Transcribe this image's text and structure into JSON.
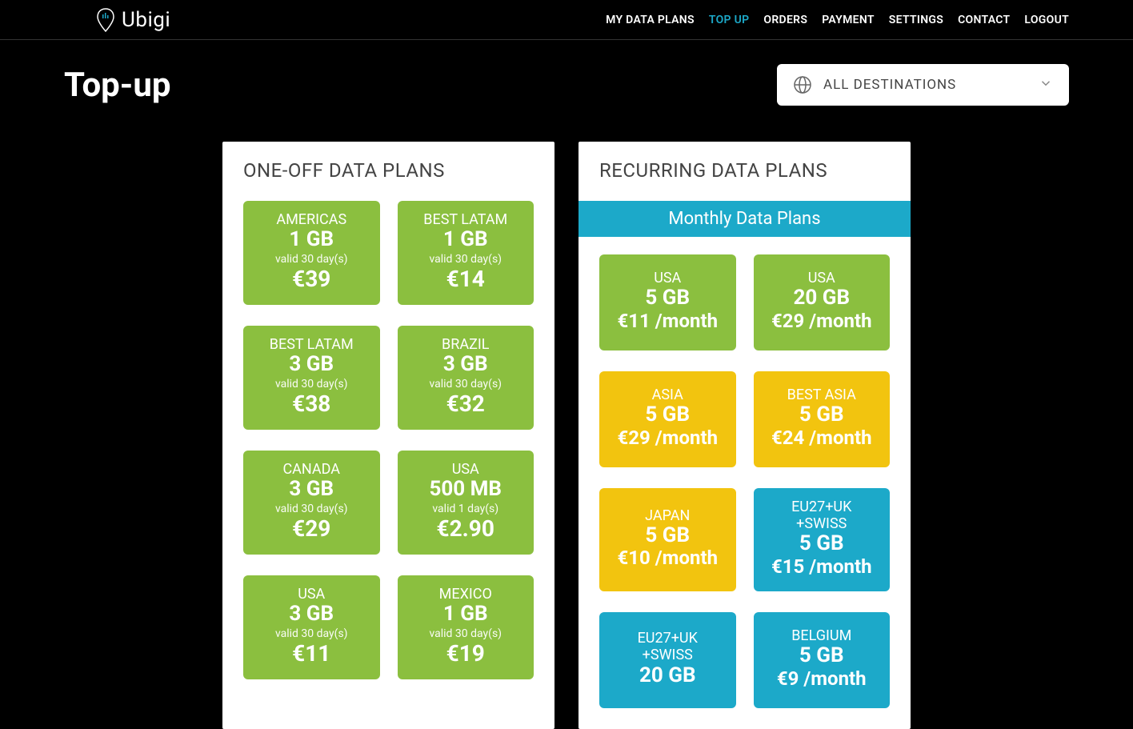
{
  "brand": "Ubigi",
  "nav": [
    {
      "label": "MY DATA PLANS",
      "active": false
    },
    {
      "label": "TOP UP",
      "active": true
    },
    {
      "label": "ORDERS",
      "active": false
    },
    {
      "label": "PAYMENT",
      "active": false
    },
    {
      "label": "SETTINGS",
      "active": false
    },
    {
      "label": "CONTACT",
      "active": false
    },
    {
      "label": "LOGOUT",
      "active": false
    }
  ],
  "page_title": "Top-up",
  "destination_selector": {
    "label": "ALL DESTINATIONS"
  },
  "colors": {
    "green": "#8bbf3f",
    "yellow": "#f2c40f",
    "teal": "#1ca9c9",
    "bg": "#000000",
    "panel_bg": "#ffffff",
    "text_dark": "#444444"
  },
  "panels": {
    "oneoff": {
      "title": "ONE-OFF DATA PLANS",
      "cards": [
        {
          "dest": "AMERICAS",
          "gb": "1 GB",
          "valid": "valid 30 day(s)",
          "price": "€39",
          "color": "green"
        },
        {
          "dest": "BEST LATAM",
          "gb": "1 GB",
          "valid": "valid 30 day(s)",
          "price": "€14",
          "color": "green"
        },
        {
          "dest": "BEST LATAM",
          "gb": "3 GB",
          "valid": "valid 30 day(s)",
          "price": "€38",
          "color": "green"
        },
        {
          "dest": "BRAZIL",
          "gb": "3 GB",
          "valid": "valid 30 day(s)",
          "price": "€32",
          "color": "green"
        },
        {
          "dest": "CANADA",
          "gb": "3 GB",
          "valid": "valid 30 day(s)",
          "price": "€29",
          "color": "green"
        },
        {
          "dest": "USA",
          "gb": "500 MB",
          "valid": "valid 1 day(s)",
          "price": "€2.90",
          "color": "green"
        },
        {
          "dest": "USA",
          "gb": "3 GB",
          "valid": "valid 30 day(s)",
          "price": "€11",
          "color": "green"
        },
        {
          "dest": "MEXICO",
          "gb": "1 GB",
          "valid": "valid 30 day(s)",
          "price": "€19",
          "color": "green"
        }
      ]
    },
    "recurring": {
      "title": "RECURRING DATA PLANS",
      "banner": "Monthly Data Plans",
      "cards": [
        {
          "dest": "USA",
          "gb": "5 GB",
          "price": "€11 /month",
          "color": "green"
        },
        {
          "dest": "USA",
          "gb": "20 GB",
          "price": "€29 /month",
          "color": "green"
        },
        {
          "dest": "ASIA",
          "gb": "5 GB",
          "price": "€29 /month",
          "color": "yellow"
        },
        {
          "dest": "BEST ASIA",
          "gb": "5 GB",
          "price": "€24 /month",
          "color": "yellow"
        },
        {
          "dest": "JAPAN",
          "gb": "5 GB",
          "price": "€10 /month",
          "color": "yellow"
        },
        {
          "dest": "EU27+UK\n+SWISS",
          "gb": "5 GB",
          "price": "€15 /month",
          "color": "teal"
        },
        {
          "dest": "EU27+UK\n+SWISS",
          "gb": "20 GB",
          "price": "",
          "color": "teal"
        },
        {
          "dest": "BELGIUM",
          "gb": "5 GB",
          "price": "€9 /month",
          "color": "teal"
        }
      ]
    }
  }
}
